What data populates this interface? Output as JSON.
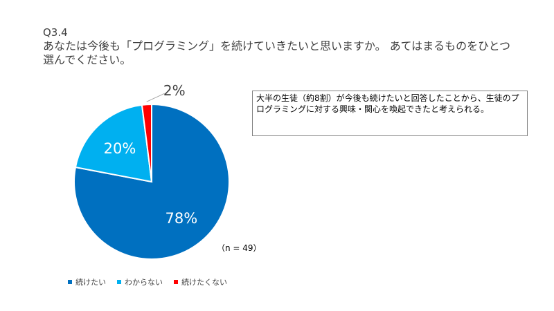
{
  "question": {
    "number": "Q3.4",
    "text": "あなたは今後も「プログラミング」を続けていきたいと思いますか。 あてはまるものをひとつ選んでください。"
  },
  "note": "大半の生徒（約8割）が今後も続けたいと回答したことから、生徒のプログラミングに対する興味・関心を喚起できたと考えられる。",
  "chart_data": {
    "type": "pie",
    "categories": [
      "続けたい",
      "わからない",
      "続けたくない"
    ],
    "values": [
      78,
      20,
      2
    ],
    "labels": [
      "78%",
      "20%",
      "2%"
    ],
    "colors": [
      "#0070C0",
      "#00B0F0",
      "#FF0000"
    ],
    "sample_size": "（n = 49）",
    "legend_position": "bottom"
  }
}
